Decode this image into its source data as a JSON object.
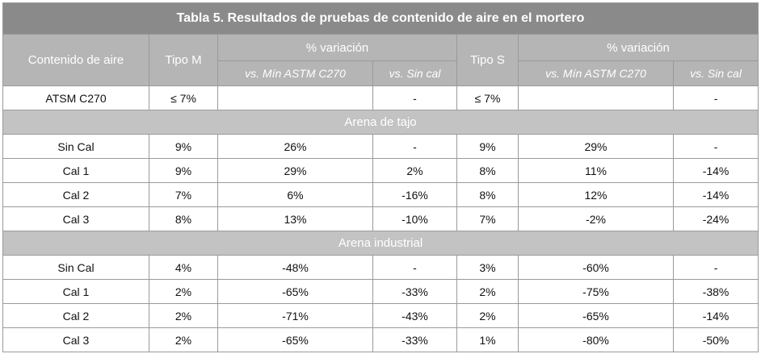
{
  "title": "Tabla 5. Resultados de pruebas de contenido de aire en el mortero",
  "headers": {
    "col_contenido": "Contenido de aire",
    "col_tipo_m": "Tipo M",
    "group_var_m": "% variación",
    "col_tipo_s": "Tipo S",
    "group_var_s": "% variación",
    "sub_min_m": "vs. Mín ASTM C270",
    "sub_sincal_m": "vs. Sin cal",
    "sub_min_s": "vs. Mín ASTM C270",
    "sub_sincal_s": "vs. Sin cal"
  },
  "astm_row": [
    "ATSM C270",
    "≤ 7%",
    "",
    "-",
    "≤ 7%",
    "",
    "-"
  ],
  "sections": [
    {
      "name": "Arena de tajo",
      "rows": [
        [
          "Sin Cal",
          "9%",
          "26%",
          "-",
          "9%",
          "29%",
          "-"
        ],
        [
          "Cal 1",
          "9%",
          "29%",
          "2%",
          "8%",
          "11%",
          "-14%"
        ],
        [
          "Cal 2",
          "7%",
          "6%",
          "-16%",
          "8%",
          "12%",
          "-14%"
        ],
        [
          "Cal 3",
          "8%",
          "13%",
          "-10%",
          "7%",
          "-2%",
          "-24%"
        ]
      ]
    },
    {
      "name": "Arena industrial",
      "rows": [
        [
          "Sin Cal",
          "4%",
          "-48%",
          "-",
          "3%",
          "-60%",
          "-"
        ],
        [
          "Cal 1",
          "2%",
          "-65%",
          "-33%",
          "2%",
          "-75%",
          "-38%"
        ],
        [
          "Cal 2",
          "2%",
          "-71%",
          "-43%",
          "2%",
          "-65%",
          "-14%"
        ],
        [
          "Cal 3",
          "2%",
          "-65%",
          "-33%",
          "1%",
          "-80%",
          "-50%"
        ]
      ]
    }
  ]
}
